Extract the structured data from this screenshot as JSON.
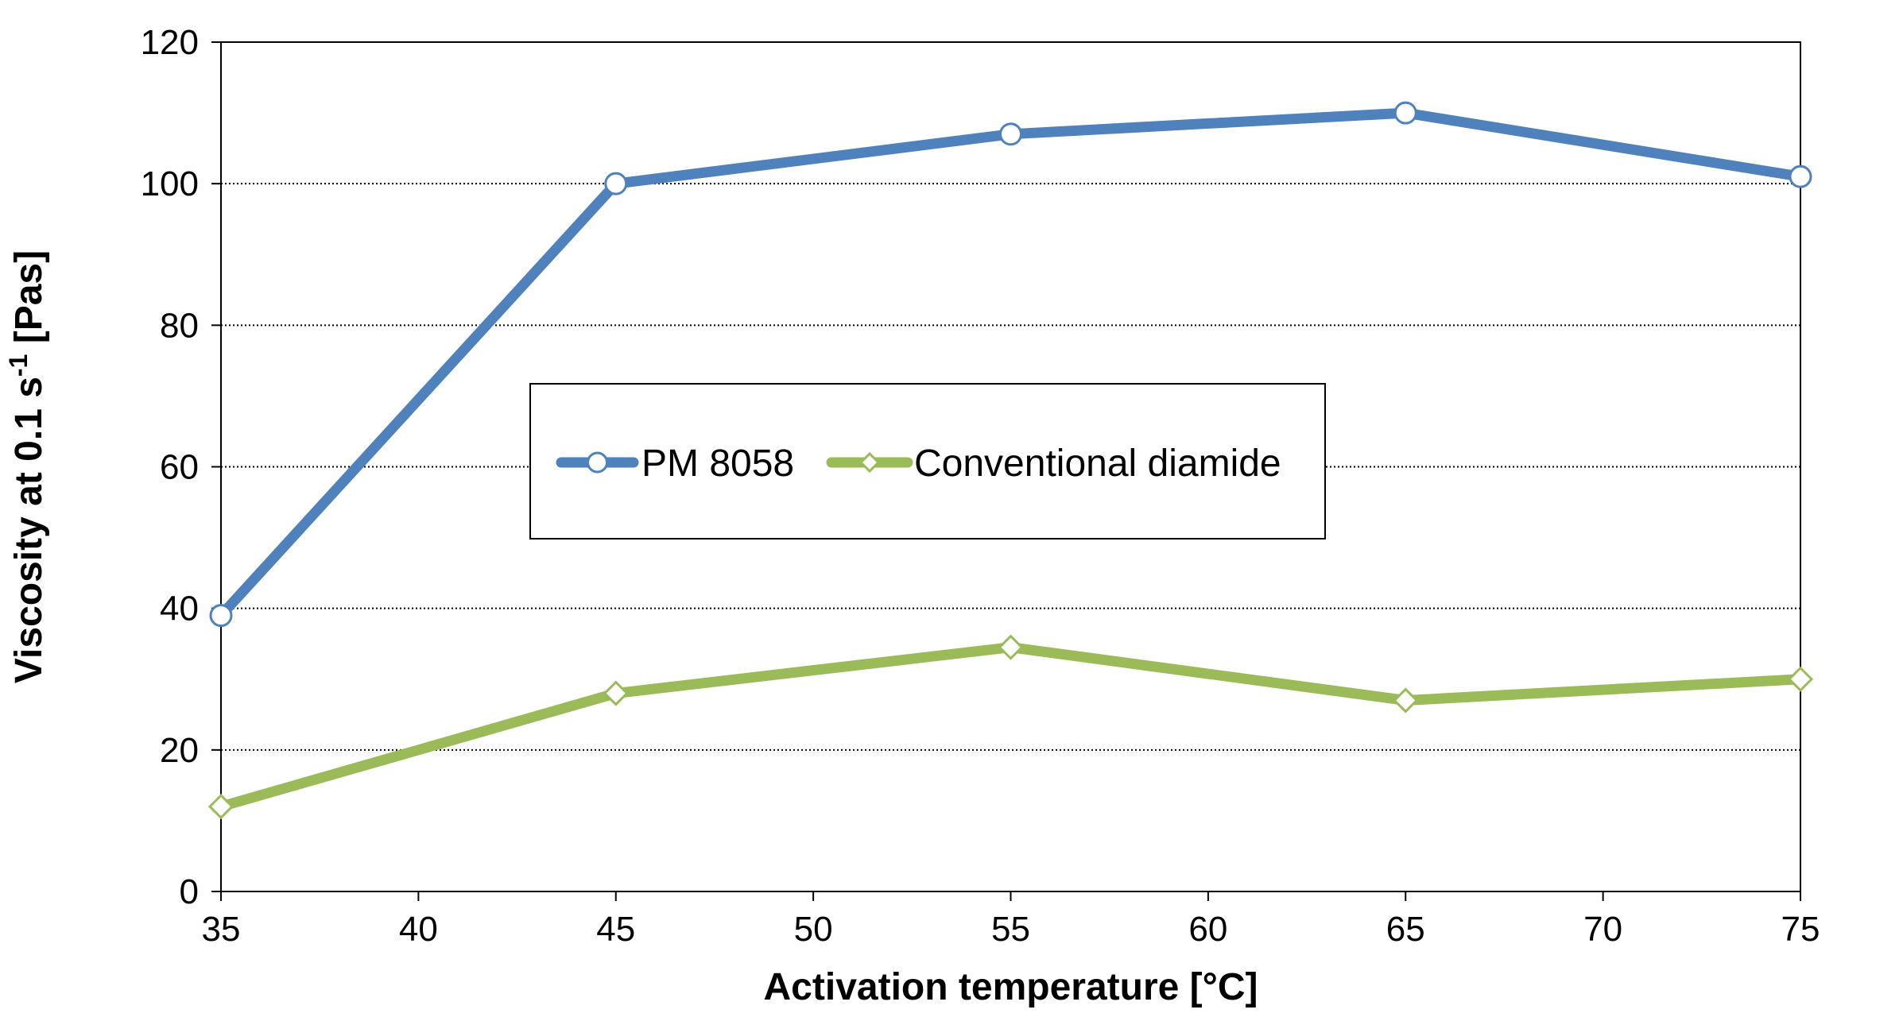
{
  "chart_data": {
    "type": "line",
    "title": "",
    "xlabel": "Activation temperature [°C]",
    "ylabel": {
      "prefix": "Viscosity at 0.1 s",
      "superscript": "-1",
      "suffix": " [Pas]"
    },
    "xlim": [
      35,
      75
    ],
    "ylim": [
      0,
      120
    ],
    "xticks": [
      35,
      40,
      45,
      50,
      55,
      60,
      65,
      70,
      75
    ],
    "yticks": [
      0,
      20,
      40,
      60,
      80,
      100,
      120
    ],
    "grid": "horizontal dotted",
    "legend_position": "center",
    "series": [
      {
        "name": "PM 8058",
        "color": "#4F81BD",
        "marker": "circle",
        "x": [
          35,
          45,
          55,
          65,
          75
        ],
        "y": [
          39,
          100,
          107,
          110,
          101
        ]
      },
      {
        "name": "Conventional diamide",
        "color": "#9BBB59",
        "marker": "diamond",
        "x": [
          35,
          45,
          55,
          65,
          75
        ],
        "y": [
          12,
          28,
          34.5,
          27,
          30
        ]
      }
    ]
  }
}
